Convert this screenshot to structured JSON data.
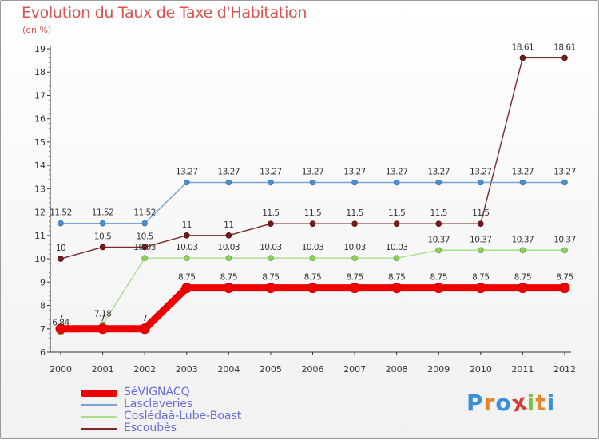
{
  "header": {
    "title": "Evolution du Taux de Taxe d'Habitation",
    "unit": "(en %)"
  },
  "chart_data": {
    "type": "line",
    "title": "Evolution du Taux de Taxe d'Habitation",
    "ylabel": "(en %)",
    "xlabel": "",
    "x": [
      "2000",
      "2001",
      "2002",
      "2003",
      "2004",
      "2005",
      "2006",
      "2007",
      "2008",
      "2009",
      "2010",
      "2011",
      "2012"
    ],
    "ylim": [
      6,
      19
    ],
    "yticks": [
      "6",
      "7",
      "8",
      "9",
      "10",
      "11",
      "12",
      "13",
      "14",
      "15",
      "16",
      "17",
      "18",
      "19"
    ],
    "grid": false,
    "legend_position": "bottom-left",
    "series": [
      {
        "name": "SéVIGNACQ",
        "color": "#ee0000",
        "values": [
          7,
          7,
          7,
          8.75,
          8.75,
          8.75,
          8.75,
          8.75,
          8.75,
          8.75,
          8.75,
          8.75,
          8.75
        ],
        "labels": [
          "7",
          "7",
          "7",
          "8.75",
          "8.75",
          "8.75",
          "8.75",
          "8.75",
          "8.75",
          "8.75",
          "8.75",
          "8.75",
          "8.75"
        ]
      },
      {
        "name": "Lasclaveries",
        "color": "#7aa6d6",
        "values": [
          11.52,
          11.52,
          11.52,
          13.27,
          13.27,
          13.27,
          13.27,
          13.27,
          13.27,
          13.27,
          13.27,
          13.27,
          13.27
        ],
        "labels": [
          "11.52",
          "11.52",
          "11.52",
          "13.27",
          "13.27",
          "13.27",
          "13.27",
          "13.27",
          "13.27",
          "13.27",
          "13.27",
          "13.27",
          "13.27"
        ]
      },
      {
        "name": "Coslédaà-Lube-Boast",
        "color": "#a8e08a",
        "values": [
          6.84,
          7.18,
          10.03,
          10.03,
          10.03,
          10.03,
          10.03,
          10.03,
          10.03,
          10.37,
          10.37,
          10.37,
          10.37
        ],
        "labels": [
          "6.84",
          "7.18",
          "10.03",
          "10.03",
          "10.03",
          "10.03",
          "10.03",
          "10.03",
          "10.03",
          "10.37",
          "10.37",
          "10.37",
          "10.37"
        ]
      },
      {
        "name": "Escoubès",
        "color": "#7a2a2a",
        "values": [
          10,
          10.5,
          10.5,
          11,
          11,
          11.5,
          11.5,
          11.5,
          11.5,
          11.5,
          11.5,
          18.61,
          18.61
        ],
        "labels": [
          "10",
          "10.5",
          "10.5",
          "11",
          "11",
          "11.5",
          "11.5",
          "11.5",
          "11.5",
          "11.5",
          "11.5",
          "18.61",
          "18.61"
        ]
      }
    ]
  },
  "branding": {
    "logo_letters": [
      "P",
      "r",
      "o",
      "x",
      "i",
      "t",
      "i"
    ],
    "logo_colors": [
      "#3a8fd8",
      "#e8852a",
      "#3a8fd8",
      "#d63a3a",
      "#7cc040",
      "#e8852a",
      "#3a8fd8"
    ]
  }
}
